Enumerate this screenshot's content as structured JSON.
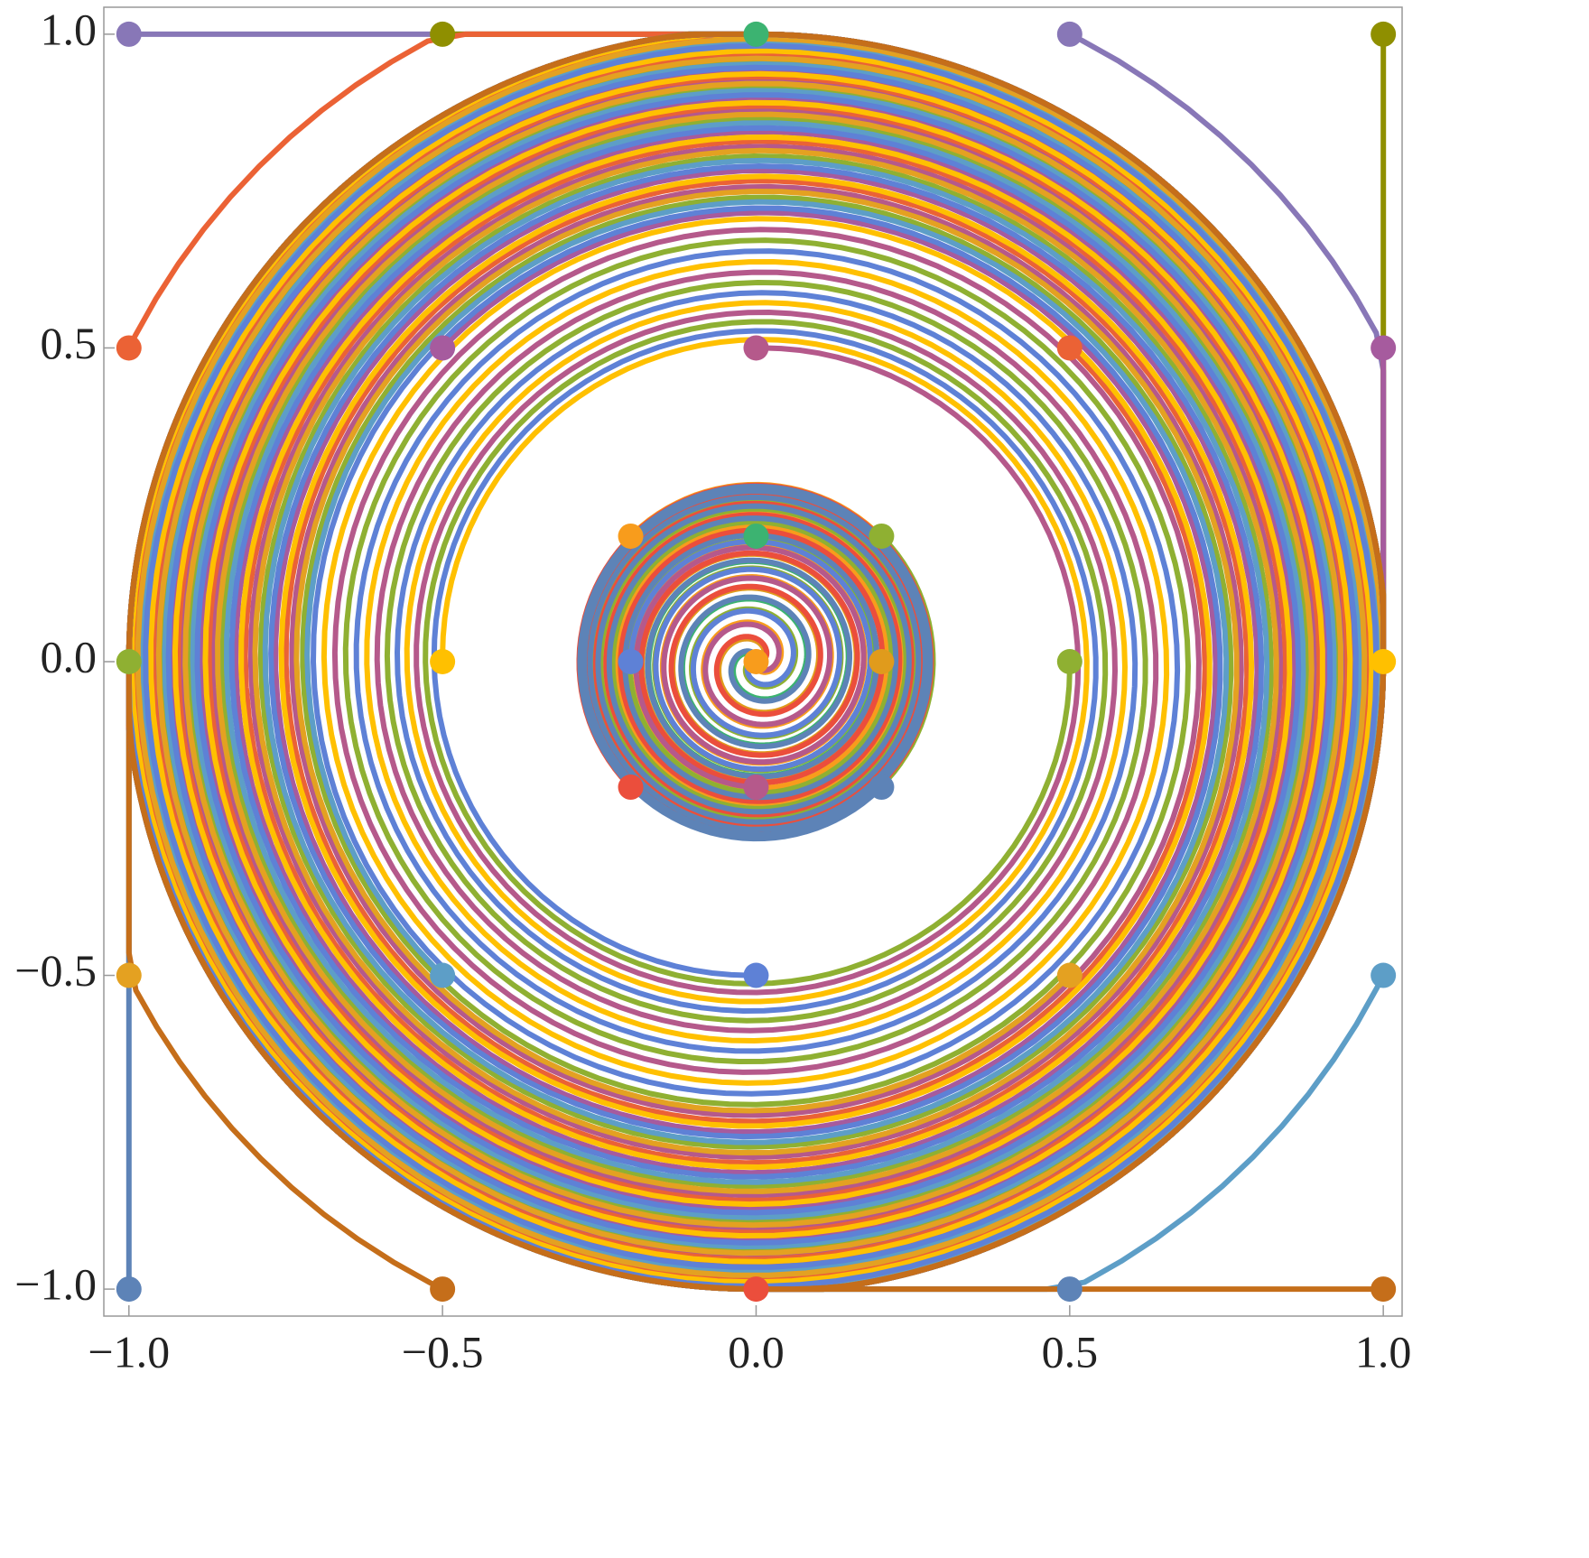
{
  "chart_data": {
    "type": "scatter",
    "x": [
      -1,
      -0.5,
      0,
      0.5,
      1,
      -1,
      -0.5,
      0,
      0.5,
      1,
      -1,
      -0.5,
      0,
      0.5,
      1,
      -1,
      -0.5,
      0,
      0.5,
      1,
      -1,
      -0.5,
      0,
      0.5,
      1,
      -0.2,
      0,
      0.2,
      -0.2,
      0.2,
      -0.2,
      0,
      0.2
    ],
    "y": [
      1,
      1,
      1,
      1,
      1,
      0.5,
      0.5,
      0.5,
      0.5,
      0.5,
      0,
      0,
      0,
      0,
      0,
      -0.5,
      -0.5,
      -0.5,
      -0.5,
      -0.5,
      -1,
      -1,
      -1,
      -1,
      -1,
      0.2,
      0.2,
      0.2,
      0,
      0,
      -0.2,
      -0.2,
      -0.2
    ],
    "colors": [
      "#8877b7",
      "#8f8f00",
      "#3cb371",
      "#8877b7",
      "#8f8f00",
      "#eb6235",
      "#a65b9e",
      "#b5598b",
      "#eb6235",
      "#a65b9e",
      "#8fb032",
      "#ffc000",
      "#f89c1c",
      "#8fb032",
      "#ffc000",
      "#e4a121",
      "#5d9ec7",
      "#5e81d6",
      "#e4a121",
      "#5d9ec7",
      "#5d83b7",
      "#c56e1a",
      "#eb4e3c",
      "#5d83b7",
      "#c56e1a",
      "#f89c1c",
      "#3cb371",
      "#8fb032",
      "#5e81d6",
      "#e09b1c",
      "#eb4e3c",
      "#b5598b",
      "#5d83b7"
    ],
    "xlim": [
      -1.04,
      1.03
    ],
    "ylim": [
      -1.043,
      1.043
    ],
    "xticks": [
      {
        "value": -1,
        "label": "−1.0"
      },
      {
        "value": -0.5,
        "label": "−0.5"
      },
      {
        "value": 0,
        "label": "0.0"
      },
      {
        "value": 0.5,
        "label": "0.5"
      },
      {
        "value": 1,
        "label": "1.0"
      }
    ],
    "yticks": [
      {
        "value": -1,
        "label": "−1.0"
      },
      {
        "value": -0.5,
        "label": "−0.5"
      },
      {
        "value": 0,
        "label": "0.0"
      },
      {
        "value": 0.5,
        "label": "0.5"
      },
      {
        "value": 1,
        "label": "1.0"
      }
    ]
  }
}
